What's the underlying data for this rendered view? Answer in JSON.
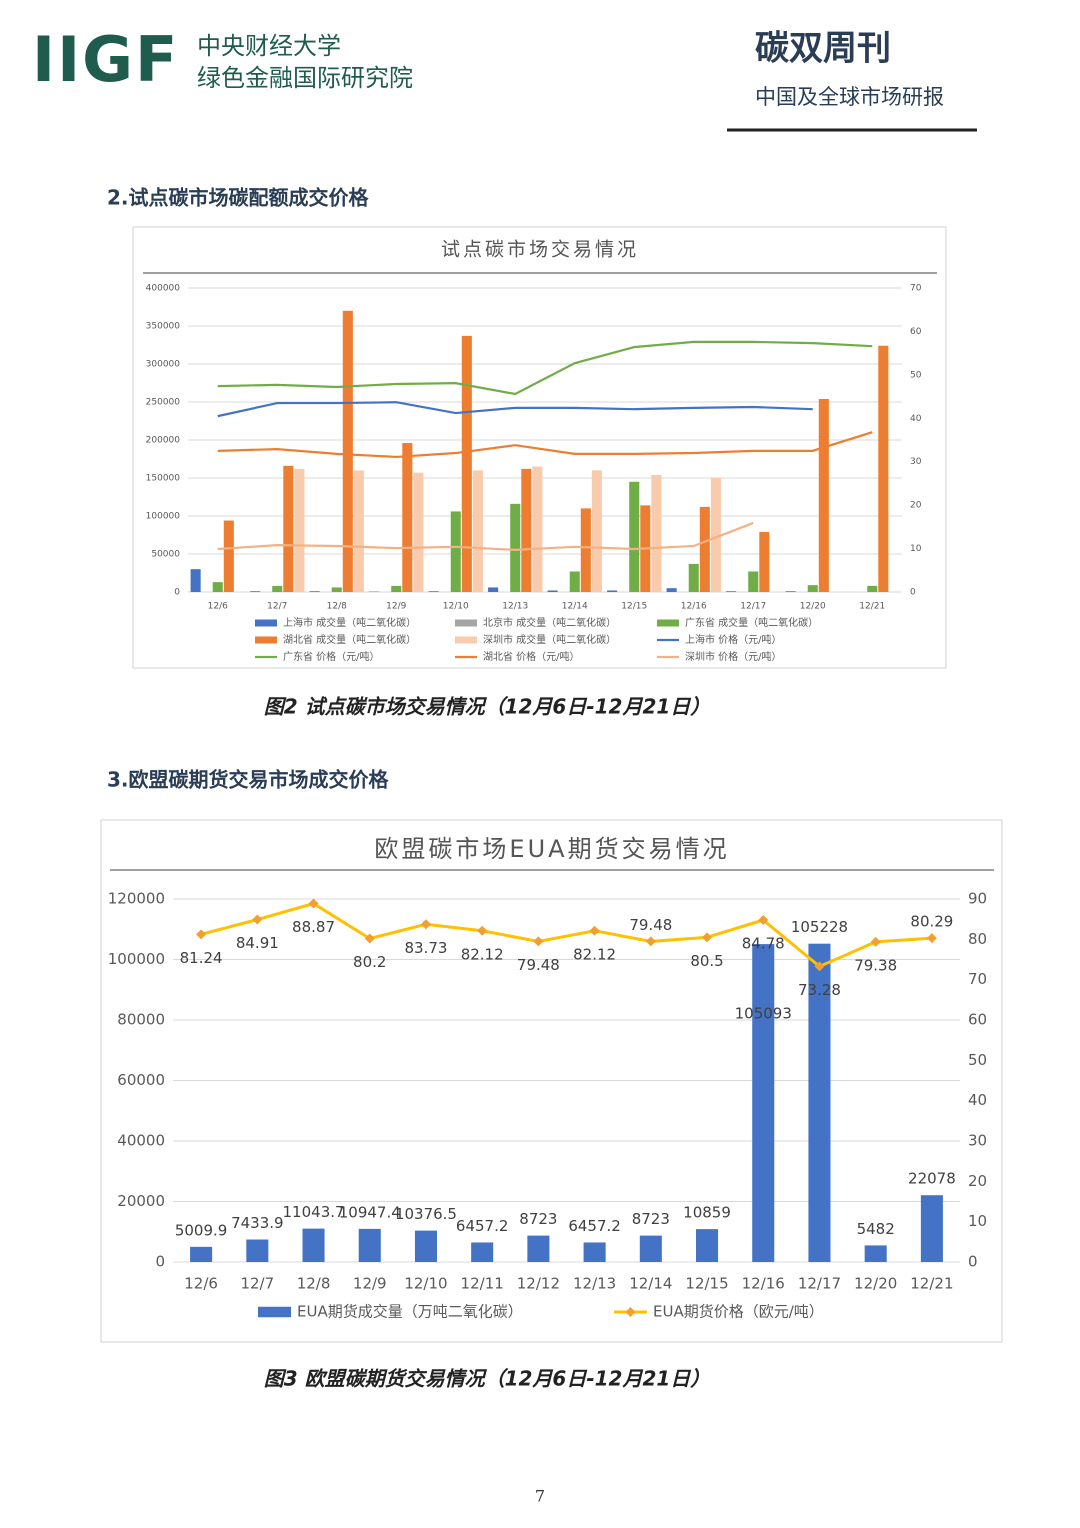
{
  "header": {
    "logo": "IIGF",
    "org_line1": "中央财经大学",
    "org_line2": "绿色金融国际研究院",
    "title": "碳双周刊",
    "subtitle": "中国及全球市场研报"
  },
  "sections": [
    {
      "heading": "2.试点碳市场碳配额成交价格",
      "caption": "图2 试点碳市场交易情况（12月6日-12月21日）"
    },
    {
      "heading": "3.欧盟碳期货交易市场成交价格",
      "caption": "图3 欧盟碳期货交易情况（12月6日-12月21日）"
    }
  ],
  "page_number": 7,
  "chart_data": [
    {
      "type": "bar",
      "title": "试点碳市场交易情况",
      "categories": [
        "12/6",
        "12/7",
        "12/8",
        "12/9",
        "12/10",
        "12/13",
        "12/14",
        "12/15",
        "12/16",
        "12/17",
        "12/20",
        "12/21"
      ],
      "ylim": [
        0,
        400000
      ],
      "yticks": [
        0,
        50000,
        100000,
        150000,
        200000,
        250000,
        300000,
        350000,
        400000
      ],
      "y2lim": [
        0,
        70
      ],
      "y2ticks": [
        0,
        10,
        20,
        30,
        40,
        50,
        60,
        70
      ],
      "grid": true,
      "series": [
        {
          "name": "上海市 成交量（吨二氧化碳）",
          "type": "bar",
          "color": "#4472c4",
          "values": [
            30000,
            1000,
            1000,
            500,
            1000,
            6000,
            2000,
            2000,
            5000,
            1000,
            1000,
            0
          ]
        },
        {
          "name": "北京市 成交量（吨二氧化碳）",
          "type": "bar",
          "color": "#a5a5a5",
          "values": [
            0,
            0,
            0,
            0,
            0,
            0,
            0,
            0,
            0,
            0,
            0,
            0
          ]
        },
        {
          "name": "广东省 成交量（吨二氧化碳）",
          "type": "bar",
          "color": "#70ad47",
          "values": [
            13000,
            8000,
            6000,
            8000,
            106000,
            116000,
            27000,
            145000,
            37000,
            27000,
            9000,
            8000
          ]
        },
        {
          "name": "湖北省 成交量（吨二氧化碳）",
          "type": "bar",
          "color": "#ed7d31",
          "values": [
            94000,
            166000,
            370000,
            196000,
            337000,
            162000,
            110000,
            114000,
            112000,
            79000,
            254000,
            324000
          ]
        },
        {
          "name": "深圳市 成交量（吨二氧化碳）",
          "type": "bar",
          "color": "#f8cbad",
          "values": [
            0,
            162000,
            160000,
            157000,
            160000,
            165000,
            160000,
            154000,
            150000,
            0,
            0,
            0
          ]
        },
        {
          "name": "上海市 价格（元/吨）",
          "type": "line",
          "axis": "y2",
          "color": "#4472c4",
          "values": [
            40.5,
            43.5,
            43.5,
            43.7,
            41.2,
            42.4,
            42.4,
            42.1,
            42.4,
            42.6,
            42.1,
            null
          ]
        },
        {
          "name": "广东省 价格（元/吨）",
          "type": "line",
          "axis": "y2",
          "color": "#70ad47",
          "values": [
            47.4,
            47.7,
            47.2,
            47.9,
            48.1,
            45.6,
            52.7,
            56.4,
            57.6,
            57.6,
            57.3,
            56.6
          ]
        },
        {
          "name": "湖北省 价格（元/吨）",
          "type": "line",
          "axis": "y2",
          "color": "#ed7d31",
          "values": [
            32.5,
            32.9,
            31.8,
            31.1,
            32.0,
            33.8,
            31.8,
            31.8,
            32.0,
            32.5,
            32.5,
            36.8
          ]
        },
        {
          "name": "深圳市 价格（元/吨）",
          "type": "line",
          "axis": "y2",
          "color": "#f4b183",
          "values": [
            9.9,
            10.8,
            10.6,
            10.1,
            10.4,
            9.7,
            10.4,
            9.9,
            10.6,
            15.9,
            null,
            null
          ]
        }
      ]
    },
    {
      "type": "bar",
      "title": "欧盟碳市场EUA期货交易情况",
      "categories": [
        "12/6",
        "12/7",
        "12/8",
        "12/9",
        "12/10",
        "12/11",
        "12/12",
        "12/13",
        "12/14",
        "12/15",
        "12/16",
        "12/17",
        "12/20",
        "12/21"
      ],
      "ylim": [
        0,
        120000
      ],
      "yticks": [
        0,
        20000,
        40000,
        60000,
        80000,
        100000,
        120000
      ],
      "y2lim": [
        0,
        90
      ],
      "y2ticks": [
        0,
        10,
        20,
        30,
        40,
        50,
        60,
        70,
        80,
        90
      ],
      "grid": true,
      "series": [
        {
          "name": "EUA期货成交量（万吨二氧化碳）",
          "type": "bar",
          "color": "#4472c4",
          "values": [
            5009.9,
            7433.9,
            11043.7,
            10947.4,
            10376.5,
            6457.2,
            8723,
            6457.2,
            8723,
            10859,
            105093,
            105228,
            5482,
            22078
          ]
        },
        {
          "name": "EUA期货价格（欧元/吨）",
          "type": "line",
          "axis": "y2",
          "color": "#ffc000",
          "marker_color": "#f0a030",
          "values": [
            81.24,
            84.91,
            88.87,
            80.2,
            83.73,
            82.12,
            79.48,
            82.12,
            79.48,
            80.5,
            84.78,
            73.28,
            79.38,
            80.29
          ]
        }
      ]
    }
  ]
}
